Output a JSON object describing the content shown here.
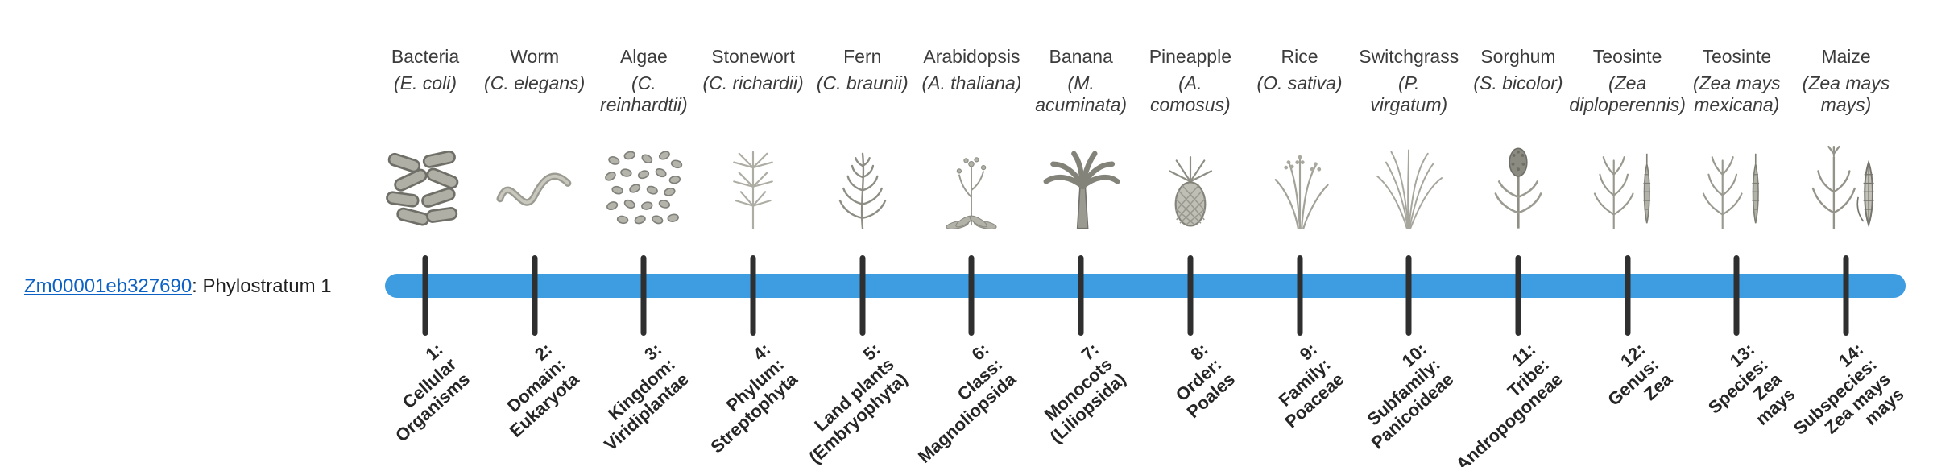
{
  "gene": {
    "id": "Zm00001eb327690",
    "suffix": ": Phylostratum 1",
    "link_color": "#0b61c4"
  },
  "timeline": {
    "bar_color": "#3d9de0",
    "tick_color": "#2f2f2f"
  },
  "organisms": [
    {
      "name": "Bacteria",
      "sci": "(E. coli)",
      "icon": "bacteria-icon",
      "stratum": "1:\nCellular\nOrganisms"
    },
    {
      "name": "Worm",
      "sci": "(C. elegans)",
      "icon": "worm-icon",
      "stratum": "2:\nDomain:\nEukaryota"
    },
    {
      "name": "Algae",
      "sci": "(C.\nreinhardtii)",
      "icon": "algae-icon",
      "stratum": "3:\nKingdom:\nViridiplantae"
    },
    {
      "name": "Stonewort",
      "sci": "(C. richardii)",
      "icon": "stonewort-icon",
      "stratum": "4:\nPhylum:\nStreptophyta"
    },
    {
      "name": "Fern",
      "sci": "(C. braunii)",
      "icon": "fern-icon",
      "stratum": "5:\nLand plants\n(Embryophyta)"
    },
    {
      "name": "Arabidopsis",
      "sci": "(A. thaliana)",
      "icon": "arabidopsis-icon",
      "stratum": "6:\nClass:\nMagnoliopsida"
    },
    {
      "name": "Banana",
      "sci": "(M.\nacuminata)",
      "icon": "banana-icon",
      "stratum": "7:\nMonocots\n(Liliopsida)"
    },
    {
      "name": "Pineapple",
      "sci": "(A.\ncomosus)",
      "icon": "pineapple-icon",
      "stratum": "8:\nOrder:\nPoales"
    },
    {
      "name": "Rice",
      "sci": "(O. sativa)",
      "icon": "rice-icon",
      "stratum": "9:\nFamily:\nPoaceae"
    },
    {
      "name": "Switchgrass",
      "sci": "(P.\nvirgatum)",
      "icon": "switchgrass-icon",
      "stratum": "10:\nSubfamily:\nPanicoideae"
    },
    {
      "name": "Sorghum",
      "sci": "(S. bicolor)",
      "icon": "sorghum-icon",
      "stratum": "11:\nTribe:\nAndropogoneae"
    },
    {
      "name": "Teosinte",
      "sci": "(Zea\ndiploperennis)",
      "icon": "teosinte-icon",
      "stratum": "12:\nGenus:\nZea"
    },
    {
      "name": "Teosinte",
      "sci": "(Zea mays\nmexicana)",
      "icon": "teosinte-icon",
      "stratum": "13:\nSpecies:\nZea\nmays"
    },
    {
      "name": "Maize",
      "sci": "(Zea mays\nmays)",
      "icon": "maize-icon",
      "stratum": "14:\nSubspecies:\nZea mays\nmays"
    }
  ]
}
